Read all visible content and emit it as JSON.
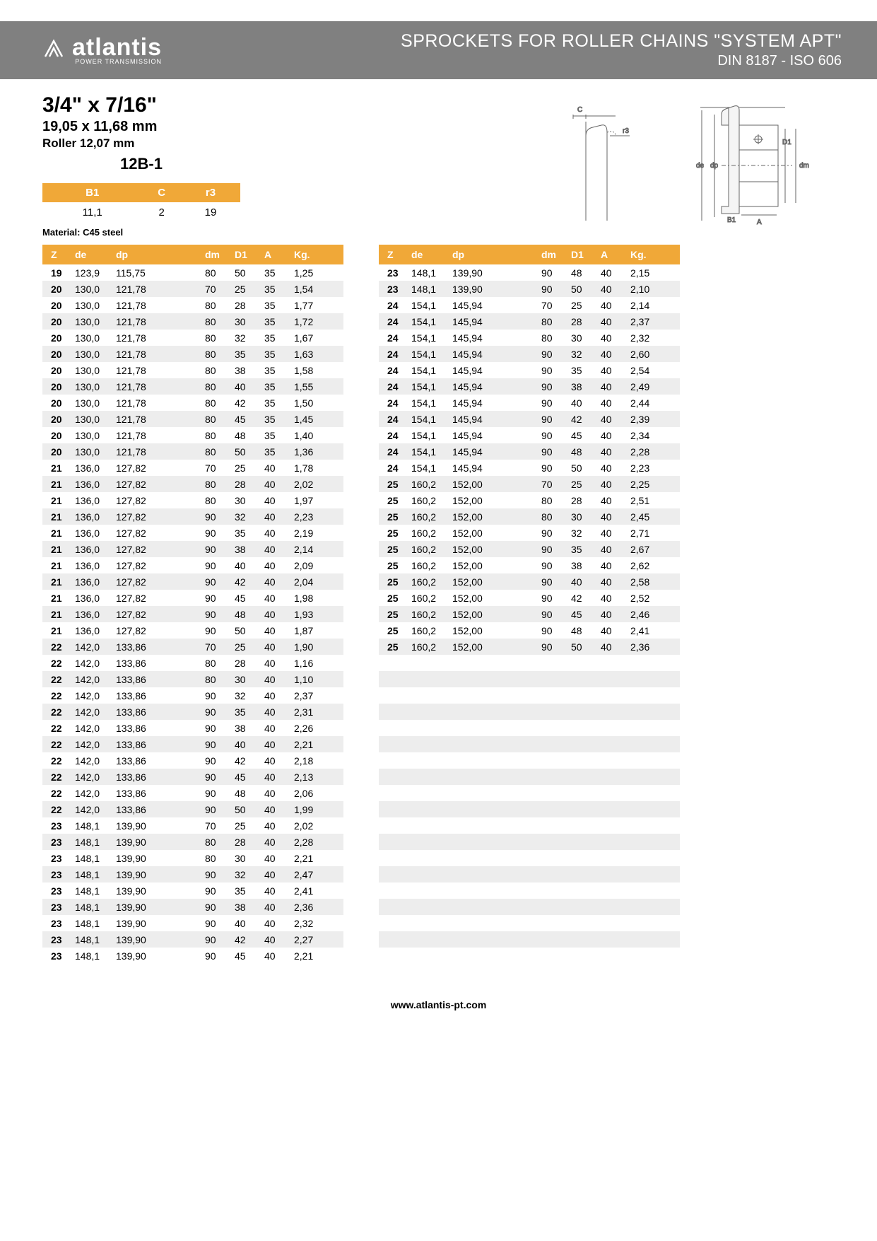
{
  "header": {
    "logo_text": "atlantis",
    "logo_sub": "POWER TRANSMISSION",
    "title": "SPROCKETS FOR ROLLER CHAINS \"SYSTEM APT\"",
    "subtitle": "DIN 8187 - ISO 606"
  },
  "spec": {
    "size_imperial": "3/4\" x 7/16\"",
    "size_mm": "19,05 x 11,68 mm",
    "roller": "Roller 12,07 mm",
    "code": "12B-1"
  },
  "small_table": {
    "headers": [
      "B1",
      "C",
      "r3"
    ],
    "values": [
      "11,1",
      "2",
      "19"
    ]
  },
  "material": "Material: C45 steel",
  "columns": [
    "Z",
    "de",
    "dp",
    "dm",
    "D1",
    "A",
    "Kg."
  ],
  "left_rows": [
    [
      "19",
      "123,9",
      "115,75",
      "80",
      "50",
      "35",
      "1,25"
    ],
    [
      "20",
      "130,0",
      "121,78",
      "70",
      "25",
      "35",
      "1,54"
    ],
    [
      "20",
      "130,0",
      "121,78",
      "80",
      "28",
      "35",
      "1,77"
    ],
    [
      "20",
      "130,0",
      "121,78",
      "80",
      "30",
      "35",
      "1,72"
    ],
    [
      "20",
      "130,0",
      "121,78",
      "80",
      "32",
      "35",
      "1,67"
    ],
    [
      "20",
      "130,0",
      "121,78",
      "80",
      "35",
      "35",
      "1,63"
    ],
    [
      "20",
      "130,0",
      "121,78",
      "80",
      "38",
      "35",
      "1,58"
    ],
    [
      "20",
      "130,0",
      "121,78",
      "80",
      "40",
      "35",
      "1,55"
    ],
    [
      "20",
      "130,0",
      "121,78",
      "80",
      "42",
      "35",
      "1,50"
    ],
    [
      "20",
      "130,0",
      "121,78",
      "80",
      "45",
      "35",
      "1,45"
    ],
    [
      "20",
      "130,0",
      "121,78",
      "80",
      "48",
      "35",
      "1,40"
    ],
    [
      "20",
      "130,0",
      "121,78",
      "80",
      "50",
      "35",
      "1,36"
    ],
    [
      "21",
      "136,0",
      "127,82",
      "70",
      "25",
      "40",
      "1,78"
    ],
    [
      "21",
      "136,0",
      "127,82",
      "80",
      "28",
      "40",
      "2,02"
    ],
    [
      "21",
      "136,0",
      "127,82",
      "80",
      "30",
      "40",
      "1,97"
    ],
    [
      "21",
      "136,0",
      "127,82",
      "90",
      "32",
      "40",
      "2,23"
    ],
    [
      "21",
      "136,0",
      "127,82",
      "90",
      "35",
      "40",
      "2,19"
    ],
    [
      "21",
      "136,0",
      "127,82",
      "90",
      "38",
      "40",
      "2,14"
    ],
    [
      "21",
      "136,0",
      "127,82",
      "90",
      "40",
      "40",
      "2,09"
    ],
    [
      "21",
      "136,0",
      "127,82",
      "90",
      "42",
      "40",
      "2,04"
    ],
    [
      "21",
      "136,0",
      "127,82",
      "90",
      "45",
      "40",
      "1,98"
    ],
    [
      "21",
      "136,0",
      "127,82",
      "90",
      "48",
      "40",
      "1,93"
    ],
    [
      "21",
      "136,0",
      "127,82",
      "90",
      "50",
      "40",
      "1,87"
    ],
    [
      "22",
      "142,0",
      "133,86",
      "70",
      "25",
      "40",
      "1,90"
    ],
    [
      "22",
      "142,0",
      "133,86",
      "80",
      "28",
      "40",
      "1,16"
    ],
    [
      "22",
      "142,0",
      "133,86",
      "80",
      "30",
      "40",
      "1,10"
    ],
    [
      "22",
      "142,0",
      "133,86",
      "90",
      "32",
      "40",
      "2,37"
    ],
    [
      "22",
      "142,0",
      "133,86",
      "90",
      "35",
      "40",
      "2,31"
    ],
    [
      "22",
      "142,0",
      "133,86",
      "90",
      "38",
      "40",
      "2,26"
    ],
    [
      "22",
      "142,0",
      "133,86",
      "90",
      "40",
      "40",
      "2,21"
    ],
    [
      "22",
      "142,0",
      "133,86",
      "90",
      "42",
      "40",
      "2,18"
    ],
    [
      "22",
      "142,0",
      "133,86",
      "90",
      "45",
      "40",
      "2,13"
    ],
    [
      "22",
      "142,0",
      "133,86",
      "90",
      "48",
      "40",
      "2,06"
    ],
    [
      "22",
      "142,0",
      "133,86",
      "90",
      "50",
      "40",
      "1,99"
    ],
    [
      "23",
      "148,1",
      "139,90",
      "70",
      "25",
      "40",
      "2,02"
    ],
    [
      "23",
      "148,1",
      "139,90",
      "80",
      "28",
      "40",
      "2,28"
    ],
    [
      "23",
      "148,1",
      "139,90",
      "80",
      "30",
      "40",
      "2,21"
    ],
    [
      "23",
      "148,1",
      "139,90",
      "90",
      "32",
      "40",
      "2,47"
    ],
    [
      "23",
      "148,1",
      "139,90",
      "90",
      "35",
      "40",
      "2,41"
    ],
    [
      "23",
      "148,1",
      "139,90",
      "90",
      "38",
      "40",
      "2,36"
    ],
    [
      "23",
      "148,1",
      "139,90",
      "90",
      "40",
      "40",
      "2,32"
    ],
    [
      "23",
      "148,1",
      "139,90",
      "90",
      "42",
      "40",
      "2,27"
    ],
    [
      "23",
      "148,1",
      "139,90",
      "90",
      "45",
      "40",
      "2,21"
    ]
  ],
  "right_rows": [
    [
      "23",
      "148,1",
      "139,90",
      "90",
      "48",
      "40",
      "2,15"
    ],
    [
      "23",
      "148,1",
      "139,90",
      "90",
      "50",
      "40",
      "2,10"
    ],
    [
      "24",
      "154,1",
      "145,94",
      "70",
      "25",
      "40",
      "2,14"
    ],
    [
      "24",
      "154,1",
      "145,94",
      "80",
      "28",
      "40",
      "2,37"
    ],
    [
      "24",
      "154,1",
      "145,94",
      "80",
      "30",
      "40",
      "2,32"
    ],
    [
      "24",
      "154,1",
      "145,94",
      "90",
      "32",
      "40",
      "2,60"
    ],
    [
      "24",
      "154,1",
      "145,94",
      "90",
      "35",
      "40",
      "2,54"
    ],
    [
      "24",
      "154,1",
      "145,94",
      "90",
      "38",
      "40",
      "2,49"
    ],
    [
      "24",
      "154,1",
      "145,94",
      "90",
      "40",
      "40",
      "2,44"
    ],
    [
      "24",
      "154,1",
      "145,94",
      "90",
      "42",
      "40",
      "2,39"
    ],
    [
      "24",
      "154,1",
      "145,94",
      "90",
      "45",
      "40",
      "2,34"
    ],
    [
      "24",
      "154,1",
      "145,94",
      "90",
      "48",
      "40",
      "2,28"
    ],
    [
      "24",
      "154,1",
      "145,94",
      "90",
      "50",
      "40",
      "2,23"
    ],
    [
      "25",
      "160,2",
      "152,00",
      "70",
      "25",
      "40",
      "2,25"
    ],
    [
      "25",
      "160,2",
      "152,00",
      "80",
      "28",
      "40",
      "2,51"
    ],
    [
      "25",
      "160,2",
      "152,00",
      "80",
      "30",
      "40",
      "2,45"
    ],
    [
      "25",
      "160,2",
      "152,00",
      "90",
      "32",
      "40",
      "2,71"
    ],
    [
      "25",
      "160,2",
      "152,00",
      "90",
      "35",
      "40",
      "2,67"
    ],
    [
      "25",
      "160,2",
      "152,00",
      "90",
      "38",
      "40",
      "2,62"
    ],
    [
      "25",
      "160,2",
      "152,00",
      "90",
      "40",
      "40",
      "2,58"
    ],
    [
      "25",
      "160,2",
      "152,00",
      "90",
      "42",
      "40",
      "2,52"
    ],
    [
      "25",
      "160,2",
      "152,00",
      "90",
      "45",
      "40",
      "2,46"
    ],
    [
      "25",
      "160,2",
      "152,00",
      "90",
      "48",
      "40",
      "2,41"
    ],
    [
      "25",
      "160,2",
      "152,00",
      "90",
      "50",
      "40",
      "2,36"
    ]
  ],
  "right_blank_count": 19,
  "footer": "www.atlantis-pt.com",
  "colors": {
    "header_bg": "#808080",
    "accent": "#f0a838",
    "alt_row": "#ededed"
  },
  "diagram_labels": {
    "c": "C",
    "r3": "r3",
    "de": "de",
    "dp": "dp",
    "d1": "D1",
    "dm": "dm",
    "b1": "B1",
    "a": "A"
  }
}
